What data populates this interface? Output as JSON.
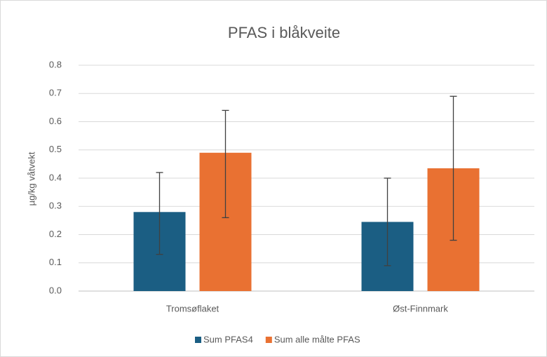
{
  "chart_data": {
    "type": "bar",
    "title": "PFAS i blåkveite",
    "y_label": "µg/kg våtvekt",
    "categories": [
      "Tromsøflaket",
      "Øst-Finnmark"
    ],
    "series": [
      {
        "name": "Sum PFAS4",
        "color": "#1b5e83",
        "values": [
          0.28,
          0.245
        ],
        "err_minus": [
          0.15,
          0.155
        ],
        "err_plus": [
          0.14,
          0.155
        ]
      },
      {
        "name": "Sum alle målte PFAS",
        "color": "#e97132",
        "values": [
          0.49,
          0.435
        ],
        "err_minus": [
          0.23,
          0.255
        ],
        "err_plus": [
          0.15,
          0.255
        ]
      }
    ],
    "ylim": [
      0,
      0.8
    ],
    "yticks": [
      {
        "value": 0,
        "label": "0.0"
      },
      0.1,
      0.2,
      0.3,
      0.4,
      0.5,
      0.6,
      0.7,
      0.8
    ],
    "grid": true,
    "legend": "bottom"
  }
}
